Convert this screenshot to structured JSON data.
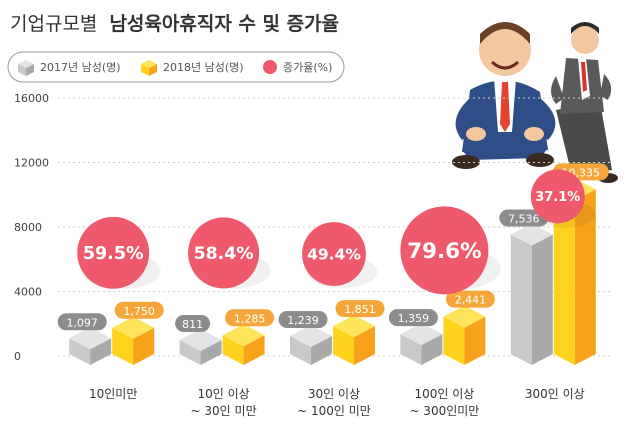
{
  "title_light": "기업규모별",
  "title_bold": "남성육아휴직자 수 및 증가율",
  "colors": {
    "gray_top": "#e4e4e4",
    "gray_left": "#c9c9c9",
    "gray_right": "#a9a9a9",
    "gray_label": "#8c8c8c",
    "yellow_top": "#ffe45c",
    "yellow_left": "#ffd21e",
    "yellow_right": "#f7a21a",
    "yellow_label": "#f4a63a",
    "rate": "#ee5a6c",
    "grid": "#cfcfcf",
    "text": "#333333"
  },
  "chart_data": {
    "type": "bar",
    "title": "기업규모별 남성육아휴직자 수 및 증가율",
    "ylim": [
      0,
      16000
    ],
    "yticks": [
      0,
      4000,
      8000,
      12000,
      16000
    ],
    "ytick_labels": [
      "0",
      "4000",
      "8000",
      "12000",
      "16000"
    ],
    "grid": true,
    "legend_position": "top-left",
    "categories": [
      [
        "10인미만"
      ],
      [
        "10인 이상",
        "~ 30인 미만"
      ],
      [
        "30인 이상",
        "~ 100인 미만"
      ],
      [
        "100인 이상",
        "~ 300인미만"
      ],
      [
        "300인 이상"
      ]
    ],
    "series": [
      {
        "name": "2017년 남성(명)",
        "values": [
          1097,
          811,
          1239,
          1359,
          7536
        ],
        "labels": [
          "1,097",
          "811",
          "1,239",
          "1,359",
          "7,536"
        ]
      },
      {
        "name": "2018년 남성(명)",
        "values": [
          1750,
          1285,
          1851,
          2441,
          10335
        ],
        "labels": [
          "1,750",
          "1,285",
          "1,851",
          "2,441",
          "10,335"
        ]
      },
      {
        "name": "증가율(%)",
        "values": [
          59.5,
          58.4,
          49.4,
          79.6,
          37.1
        ],
        "labels": [
          "59.5%",
          "58.4%",
          "49.4%",
          "79.6%",
          "37.1%"
        ]
      }
    ]
  }
}
